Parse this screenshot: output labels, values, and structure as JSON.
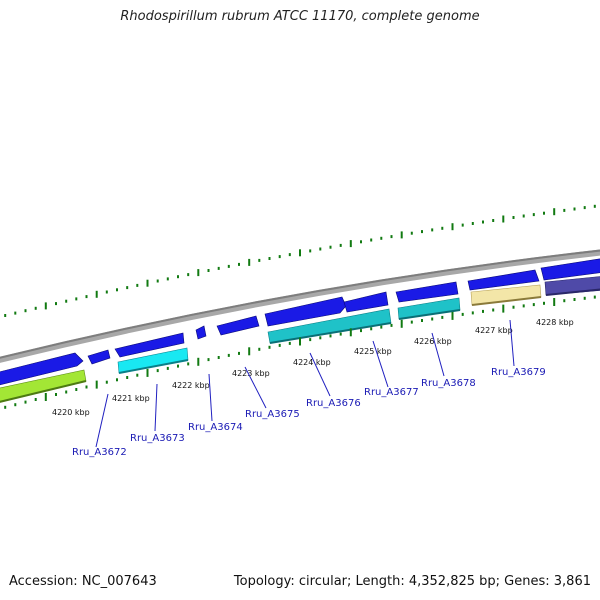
{
  "header": {
    "title": "Rhodospirillum rubrum ATCC 11170, complete genome"
  },
  "footer": {
    "accession": "Accession: NC_007643",
    "summary": "Topology: circular; Length: 4,352,825 bp; Genes: 3,861"
  },
  "colors": {
    "backbone": "#8a8a8a",
    "forward_gene": "#1a1ae6",
    "tick": "#117a11",
    "gene_label": "#1a1ab4"
  },
  "scale_ticks": [
    "4220 kbp",
    "4221 kbp",
    "4222 kbp",
    "4223 kbp",
    "4224 kbp",
    "4225 kbp",
    "4226 kbp",
    "4227 kbp",
    "4228 kbp"
  ],
  "gene_labels": [
    "Rru_A3672",
    "Rru_A3673",
    "Rru_A3674",
    "Rru_A3675",
    "Rru_A3676",
    "Rru_A3677",
    "Rru_A3678",
    "Rru_A3679"
  ]
}
